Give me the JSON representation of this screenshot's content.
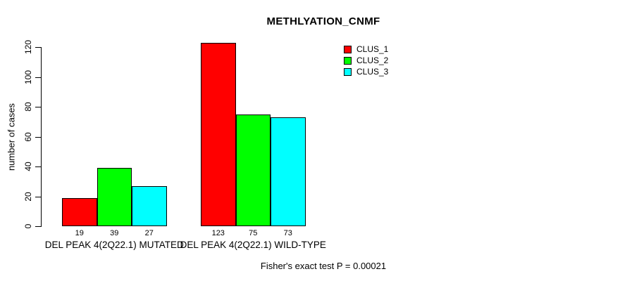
{
  "chart_data": {
    "type": "bar",
    "title": "METHLYATION_CNMF",
    "xlabel": "",
    "ylabel": "number of cases",
    "ylim": [
      0,
      120
    ],
    "yticks": [
      0,
      20,
      40,
      60,
      80,
      100,
      120
    ],
    "grid": false,
    "legend_position": "top-right",
    "categories": [
      "DEL PEAK 4(2Q22.1) MUTATED",
      "DEL PEAK 4(2Q22.1) WILD-TYPE"
    ],
    "series": [
      {
        "name": "CLUS_1",
        "color": "#FF0000",
        "values": [
          19,
          123
        ]
      },
      {
        "name": "CLUS_2",
        "color": "#00FF00",
        "values": [
          39,
          75
        ]
      },
      {
        "name": "CLUS_3",
        "color": "#00FFFF",
        "values": [
          27,
          73
        ]
      }
    ],
    "bar_value_labels": [
      [
        19,
        39,
        27
      ],
      [
        123,
        75,
        73
      ]
    ],
    "annotation": "Fisher's exact test P = 0.00021"
  }
}
